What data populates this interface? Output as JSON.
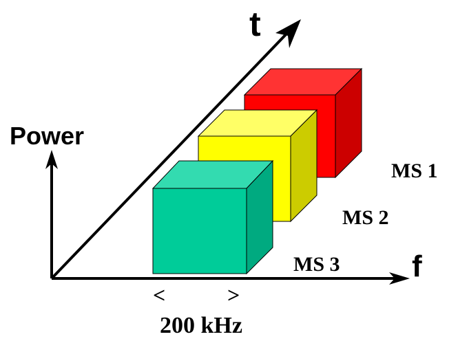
{
  "axes": {
    "power": "Power",
    "time": "t",
    "frequency": "f"
  },
  "stations": [
    "MS 1",
    "MS 2",
    "MS 3"
  ],
  "bandwidth": {
    "left": "<",
    "right": ">",
    "label": "200 kHz"
  }
}
